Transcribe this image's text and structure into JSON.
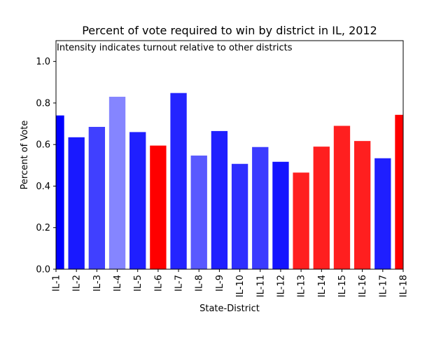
{
  "chart_data": {
    "type": "bar",
    "title": "Percent of vote required to win by district in IL, 2012",
    "annotation": "Intensity indicates turnout relative to other districts",
    "xlabel": "State-District",
    "ylabel": "Percent of Vote",
    "ylim": [
      0,
      1.1
    ],
    "yticks": [
      "0.0",
      "0.2",
      "0.4",
      "0.6",
      "0.8",
      "1.0"
    ],
    "grid": false,
    "categories": [
      "IL-1",
      "IL-2",
      "IL-3",
      "IL-4",
      "IL-5",
      "IL-6",
      "IL-7",
      "IL-8",
      "IL-9",
      "IL-10",
      "IL-11",
      "IL-12",
      "IL-13",
      "IL-14",
      "IL-15",
      "IL-16",
      "IL-17",
      "IL-18"
    ],
    "values": [
      0.74,
      0.635,
      0.685,
      0.83,
      0.66,
      0.595,
      0.848,
      0.547,
      0.665,
      0.507,
      0.588,
      0.517,
      0.465,
      0.59,
      0.69,
      0.617,
      0.534,
      0.743
    ],
    "bar_colors": [
      "#0000ff",
      "#0000ff",
      "#0000ff",
      "#0000ff",
      "#0000ff",
      "#ff0000",
      "#0000ff",
      "#0000ff",
      "#0000ff",
      "#0000ff",
      "#0000ff",
      "#0000ff",
      "#ff0000",
      "#ff0000",
      "#ff0000",
      "#ff0000",
      "#0000ff",
      "#ff0000"
    ],
    "bar_opacity": [
      1.0,
      0.9,
      0.75,
      0.48,
      0.88,
      1.0,
      0.86,
      0.65,
      0.88,
      0.82,
      0.77,
      0.92,
      0.88,
      0.88,
      0.88,
      0.88,
      0.88,
      1.0
    ]
  }
}
